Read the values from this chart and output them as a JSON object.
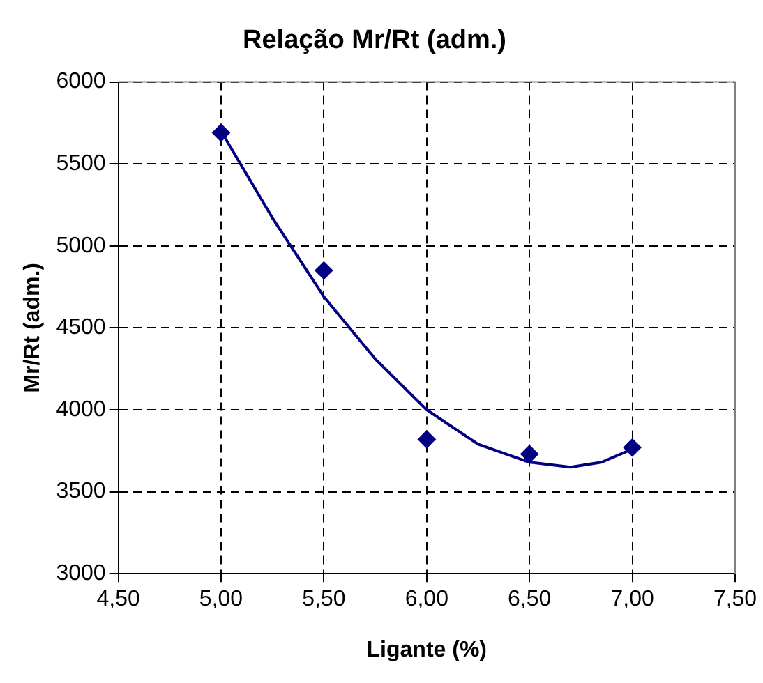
{
  "chart_data": {
    "type": "scatter",
    "title": "Relação Mr/Rt (adm.)",
    "xlabel": "Ligante (%)",
    "ylabel": "Mr/Rt (adm.)",
    "xlim": [
      4.5,
      7.5
    ],
    "ylim": [
      3000,
      6000
    ],
    "xticks": [
      {
        "value": 4.5,
        "label": "4,50"
      },
      {
        "value": 5,
        "label": "5,00"
      },
      {
        "value": 5.5,
        "label": "5,50"
      },
      {
        "value": 6,
        "label": "6,00"
      },
      {
        "value": 6.5,
        "label": "6,50"
      },
      {
        "value": 7,
        "label": "7,00"
      },
      {
        "value": 7.5,
        "label": "7,50"
      }
    ],
    "yticks": [
      3000,
      3500,
      4000,
      4500,
      5000,
      5500,
      6000
    ],
    "grid": true,
    "legend": false,
    "series": [
      {
        "type": "scatter",
        "color": "#000080",
        "marker": "diamond",
        "x": [
          5,
          5.5,
          6,
          6.5,
          7
        ],
        "values": [
          5690,
          4850,
          3820,
          3730,
          3770
        ]
      },
      {
        "type": "line",
        "color": "#000080",
        "marker": "none",
        "line_style": "solid",
        "x": [
          5,
          5.25,
          5.5,
          5.75,
          6,
          6.25,
          6.5,
          6.7,
          6.85,
          7
        ],
        "values": [
          5700,
          5170,
          4690,
          4310,
          4000,
          3790,
          3680,
          3650,
          3680,
          3760
        ]
      }
    ]
  }
}
